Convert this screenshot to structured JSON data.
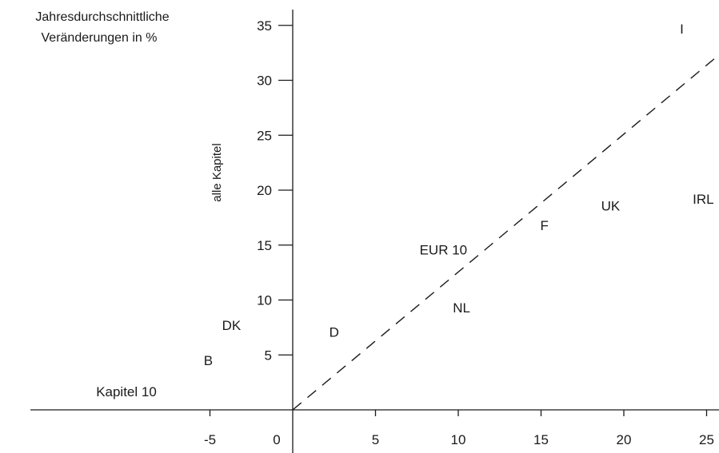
{
  "chart_data": {
    "type": "scatter",
    "title_lines": [
      "Jahresdurchschnittliche",
      "Veränderungen in %"
    ],
    "xlabel": "Kapitel 10",
    "ylabel": "alle Kapitel",
    "xlim": [
      -8.2,
      25.5
    ],
    "ylim": [
      0,
      36
    ],
    "x_ticks": [
      {
        "value": -5,
        "label": "-5"
      },
      {
        "value": 0,
        "label": "0"
      },
      {
        "value": 5,
        "label": "5"
      },
      {
        "value": 10,
        "label": "10"
      },
      {
        "value": 15,
        "label": "15"
      },
      {
        "value": 20,
        "label": "20"
      },
      {
        "value": 25,
        "label": "25"
      }
    ],
    "y_ticks": [
      {
        "value": 5,
        "label": "5"
      },
      {
        "value": 10,
        "label": "10"
      },
      {
        "value": 15,
        "label": "15"
      },
      {
        "value": 20,
        "label": "20"
      },
      {
        "value": 25,
        "label": "25"
      },
      {
        "value": 30,
        "label": "30"
      },
      {
        "value": 35,
        "label": "35"
      }
    ],
    "points": [
      {
        "label": "I",
        "x": 23.5,
        "y": 34.7
      },
      {
        "label": "IRL",
        "x": 24.8,
        "y": 19.2
      },
      {
        "label": "UK",
        "x": 19.2,
        "y": 18.6
      },
      {
        "label": "F",
        "x": 15.2,
        "y": 16.8
      },
      {
        "label": "EUR 10",
        "x": 9.1,
        "y": 14.6
      },
      {
        "label": "NL",
        "x": 10.2,
        "y": 9.3
      },
      {
        "label": "D",
        "x": 2.5,
        "y": 7.1
      },
      {
        "label": "DK",
        "x": -3.7,
        "y": 7.7
      },
      {
        "label": "B",
        "x": -5.1,
        "y": 4.5
      }
    ],
    "reference_line": {
      "style": "dashed",
      "from": [
        0,
        0
      ],
      "to": [
        25.5,
        32
      ]
    }
  }
}
